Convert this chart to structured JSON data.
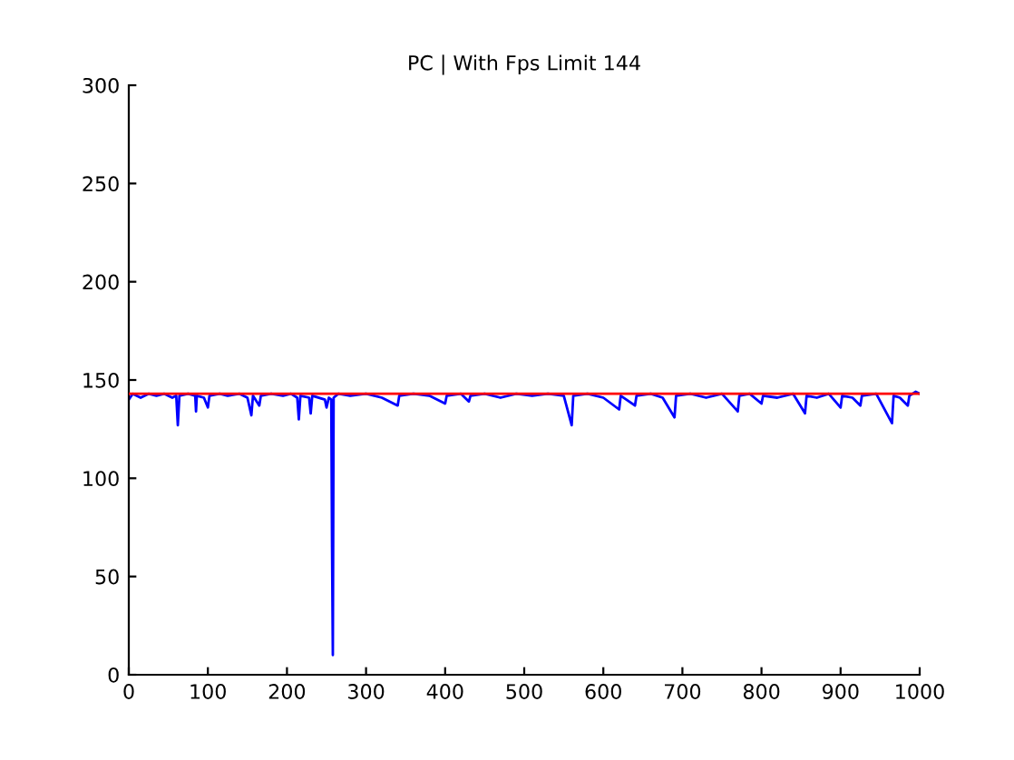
{
  "chart_data": {
    "type": "line",
    "title": "PC | With Fps Limit 144",
    "x": [
      0,
      5,
      15,
      25,
      35,
      45,
      55,
      60,
      62,
      64,
      75,
      84,
      85,
      86,
      95,
      100,
      102,
      115,
      125,
      140,
      150,
      155,
      157,
      165,
      167,
      180,
      195,
      205,
      213,
      215,
      217,
      228,
      230,
      232,
      248,
      250,
      253,
      256,
      257,
      258,
      259,
      265,
      280,
      300,
      320,
      340,
      342,
      360,
      380,
      400,
      402,
      420,
      430,
      432,
      450,
      470,
      490,
      510,
      530,
      550,
      560,
      562,
      580,
      600,
      620,
      622,
      640,
      642,
      660,
      675,
      690,
      692,
      710,
      730,
      750,
      770,
      772,
      785,
      800,
      802,
      820,
      840,
      855,
      857,
      870,
      885,
      900,
      902,
      915,
      925,
      927,
      945,
      965,
      967,
      975,
      985,
      987,
      995,
      1000
    ],
    "series": [
      {
        "color": "#0000ff",
        "values": [
          140,
          143,
          141,
          143,
          142,
          143,
          141,
          142,
          127,
          142,
          143,
          142,
          134,
          142,
          141,
          136,
          142,
          143,
          142,
          143,
          141,
          132,
          142,
          137,
          142,
          143,
          142,
          143,
          141,
          130,
          142,
          141,
          133,
          142,
          140,
          136,
          141,
          140,
          65,
          10,
          141,
          143,
          142,
          143,
          141,
          137,
          142,
          143,
          142,
          138,
          142,
          143,
          139,
          142,
          143,
          141,
          143,
          142,
          143,
          142,
          127,
          142,
          143,
          141,
          135,
          142,
          137,
          142,
          143,
          141,
          131,
          142,
          143,
          141,
          143,
          134,
          142,
          143,
          138,
          142,
          141,
          143,
          133,
          142,
          141,
          143,
          136,
          142,
          141,
          137,
          142,
          143,
          128,
          142,
          141,
          137,
          142,
          144,
          143
        ]
      }
    ],
    "ref_lines": [
      {
        "axis": "y",
        "value": 143,
        "color": "#ff0000"
      }
    ],
    "xlim": [
      0,
      1000
    ],
    "xticks": [
      0,
      100,
      200,
      300,
      400,
      500,
      600,
      700,
      800,
      900,
      1000
    ],
    "ylim": [
      0,
      300
    ],
    "yticks": [
      0,
      50,
      100,
      150,
      200,
      250,
      300
    ],
    "grid": false,
    "legend": false
  }
}
